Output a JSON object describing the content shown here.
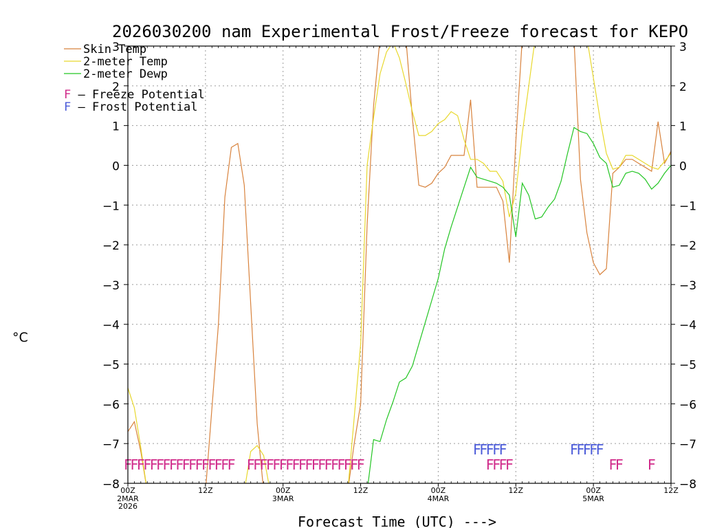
{
  "chart_data": {
    "type": "line",
    "title": "2026030200 nam Experimental Frost/Freeze forecast for KEPO",
    "xlabel": "Forecast Time (UTC) --->",
    "ylabel": "°C",
    "x_unit": "forecast hour from 00Z 2MAR2026",
    "xlim": [
      0,
      84
    ],
    "ylim": [
      -8,
      3
    ],
    "yticks": [
      -8,
      -7,
      -6,
      -5,
      -4,
      -3,
      -2,
      -1,
      0,
      1,
      2,
      3
    ],
    "ytick_labels": [
      "−8",
      "−7",
      "−6",
      "−5",
      "−4",
      "−3",
      "−2",
      "−1",
      "0",
      "1",
      "2",
      "3"
    ],
    "xticks": [
      {
        "x": 0,
        "label": "00Z",
        "sub": [
          "2MAR",
          "2026"
        ]
      },
      {
        "x": 12,
        "label": "12Z",
        "sub": []
      },
      {
        "x": 24,
        "label": "00Z",
        "sub": [
          "3MAR"
        ]
      },
      {
        "x": 36,
        "label": "12Z",
        "sub": []
      },
      {
        "x": 48,
        "label": "00Z",
        "sub": [
          "4MAR"
        ]
      },
      {
        "x": 60,
        "label": "12Z",
        "sub": []
      },
      {
        "x": 72,
        "label": "00Z",
        "sub": [
          "5MAR"
        ]
      },
      {
        "x": 84,
        "label": "12Z",
        "sub": []
      }
    ],
    "grid": true,
    "legend_position": "top-left",
    "series": [
      {
        "name": "Skin Temp",
        "color": "#d8823c",
        "points": [
          [
            0,
            -6.7
          ],
          [
            1,
            -6.45
          ],
          [
            2,
            -7.2
          ],
          [
            3,
            -8.2
          ],
          [
            12,
            -8.2
          ],
          [
            14,
            -4
          ],
          [
            15,
            -0.8
          ],
          [
            16,
            0.45
          ],
          [
            17,
            0.55
          ],
          [
            18,
            -0.5
          ],
          [
            19,
            -3.5
          ],
          [
            20,
            -6.5
          ],
          [
            21,
            -8.2
          ],
          [
            34,
            -8.2
          ],
          [
            35,
            -7
          ],
          [
            36,
            -6
          ],
          [
            37,
            -1.5
          ],
          [
            38,
            1.5
          ],
          [
            39,
            3.2
          ],
          [
            43,
            3.2
          ],
          [
            44,
            1.2
          ],
          [
            45,
            -0.5
          ],
          [
            46,
            -0.55
          ],
          [
            47,
            -0.45
          ],
          [
            48,
            -0.2
          ],
          [
            49,
            -0.05
          ],
          [
            50,
            0.25
          ],
          [
            51,
            0.25
          ],
          [
            52,
            0.25
          ],
          [
            53,
            1.65
          ],
          [
            54,
            -0.55
          ],
          [
            55,
            -0.55
          ],
          [
            56,
            -0.55
          ],
          [
            57,
            -0.55
          ],
          [
            58,
            -0.9
          ],
          [
            59,
            -2.45
          ],
          [
            60,
            0.6
          ],
          [
            61,
            3.2
          ],
          [
            69,
            3.2
          ],
          [
            70,
            -0.35
          ],
          [
            71,
            -1.7
          ],
          [
            72,
            -2.45
          ],
          [
            73,
            -2.75
          ],
          [
            74,
            -2.6
          ],
          [
            75,
            -0.2
          ],
          [
            76,
            -0.05
          ],
          [
            77,
            0.15
          ],
          [
            78,
            0.15
          ],
          [
            79,
            0.05
          ],
          [
            80,
            -0.05
          ],
          [
            81,
            -0.15
          ],
          [
            82,
            1.1
          ],
          [
            83,
            0.05
          ],
          [
            84,
            0.35
          ]
        ]
      },
      {
        "name": "2-meter Temp",
        "color": "#e8d82c",
        "points": [
          [
            0,
            -5.6
          ],
          [
            1,
            -6.1
          ],
          [
            2,
            -7.1
          ],
          [
            3,
            -8.2
          ],
          [
            18,
            -8.2
          ],
          [
            19,
            -7.2
          ],
          [
            20,
            -7.05
          ],
          [
            21,
            -7.3
          ],
          [
            22,
            -8.2
          ],
          [
            34,
            -8.2
          ],
          [
            36,
            -4.5
          ],
          [
            37,
            0
          ],
          [
            38,
            1.2
          ],
          [
            39,
            2.3
          ],
          [
            40,
            2.85
          ],
          [
            41,
            3.1
          ],
          [
            42,
            2.7
          ],
          [
            43,
            2.05
          ],
          [
            44,
            1.35
          ],
          [
            45,
            0.75
          ],
          [
            46,
            0.75
          ],
          [
            47,
            0.85
          ],
          [
            48,
            1.05
          ],
          [
            49,
            1.15
          ],
          [
            50,
            1.35
          ],
          [
            51,
            1.25
          ],
          [
            52,
            0.65
          ],
          [
            53,
            0.15
          ],
          [
            54,
            0.15
          ],
          [
            55,
            0.05
          ],
          [
            56,
            -0.15
          ],
          [
            57,
            -0.15
          ],
          [
            58,
            -0.4
          ],
          [
            59,
            -1.3
          ],
          [
            60,
            -0.7
          ],
          [
            61,
            0.8
          ],
          [
            62,
            2
          ],
          [
            63,
            3.2
          ],
          [
            71,
            3.2
          ],
          [
            72,
            2.2
          ],
          [
            73,
            1.2
          ],
          [
            74,
            0.3
          ],
          [
            75,
            -0.1
          ],
          [
            76,
            -0.05
          ],
          [
            77,
            0.25
          ],
          [
            78,
            0.25
          ],
          [
            79,
            0.15
          ],
          [
            80,
            0.05
          ],
          [
            81,
            -0.05
          ],
          [
            82,
            -0.1
          ],
          [
            83,
            0.1
          ],
          [
            84,
            0.3
          ]
        ]
      },
      {
        "name": "2-meter Dewp",
        "color": "#22c522",
        "points": [
          [
            37,
            -8.2
          ],
          [
            38,
            -6.9
          ],
          [
            39,
            -6.95
          ],
          [
            40,
            -6.4
          ],
          [
            41,
            -5.95
          ],
          [
            42,
            -5.45
          ],
          [
            43,
            -5.35
          ],
          [
            44,
            -5.05
          ],
          [
            45,
            -4.5
          ],
          [
            46,
            -3.95
          ],
          [
            47,
            -3.4
          ],
          [
            48,
            -2.85
          ],
          [
            49,
            -2.1
          ],
          [
            50,
            -1.55
          ],
          [
            51,
            -1.05
          ],
          [
            52,
            -0.55
          ],
          [
            53,
            -0.05
          ],
          [
            54,
            -0.3
          ],
          [
            55,
            -0.35
          ],
          [
            56,
            -0.4
          ],
          [
            57,
            -0.45
          ],
          [
            58,
            -0.55
          ],
          [
            59,
            -0.75
          ],
          [
            60,
            -1.8
          ],
          [
            61,
            -0.45
          ],
          [
            62,
            -0.75
          ],
          [
            63,
            -1.35
          ],
          [
            64,
            -1.3
          ],
          [
            65,
            -1.05
          ],
          [
            66,
            -0.85
          ],
          [
            67,
            -0.4
          ],
          [
            68,
            0.3
          ],
          [
            69,
            0.95
          ],
          [
            70,
            0.85
          ],
          [
            71,
            0.8
          ],
          [
            72,
            0.55
          ],
          [
            73,
            0.2
          ],
          [
            74,
            0.05
          ],
          [
            75,
            -0.55
          ],
          [
            76,
            -0.5
          ],
          [
            77,
            -0.2
          ],
          [
            78,
            -0.15
          ],
          [
            79,
            -0.2
          ],
          [
            80,
            -0.35
          ],
          [
            81,
            -0.6
          ],
          [
            82,
            -0.45
          ],
          [
            83,
            -0.2
          ],
          [
            84,
            0
          ]
        ]
      }
    ],
    "legend_items": [
      {
        "label": "Skin Temp",
        "color": "#d8823c"
      },
      {
        "label": "2-meter Temp",
        "color": "#e8d82c"
      },
      {
        "label": "2-meter Dewp",
        "color": "#22c522"
      }
    ],
    "potential_legend": [
      {
        "symbol": "F",
        "label": " – Freeze Potential",
        "color": "#d02a8a"
      },
      {
        "symbol": "F",
        "label": " – Frost Potential",
        "color": "#4a5ad8"
      }
    ],
    "freeze_symbol": "F",
    "freeze_color": "#d02a8a",
    "freeze_level": -7.5,
    "freeze_hours": [
      0,
      1,
      2,
      3,
      4,
      5,
      6,
      7,
      8,
      9,
      10,
      11,
      12,
      13,
      14,
      15,
      16,
      19,
      20,
      21,
      22,
      23,
      24,
      25,
      26,
      27,
      28,
      29,
      30,
      31,
      32,
      33,
      34,
      35,
      36,
      56,
      57,
      58,
      59,
      75,
      76,
      81
    ],
    "frost_symbol": "F",
    "frost_color": "#4a5ad8",
    "frost_level": -7.12,
    "frost_hours": [
      54,
      55,
      56,
      57,
      58,
      69,
      70,
      71,
      72,
      73
    ]
  }
}
